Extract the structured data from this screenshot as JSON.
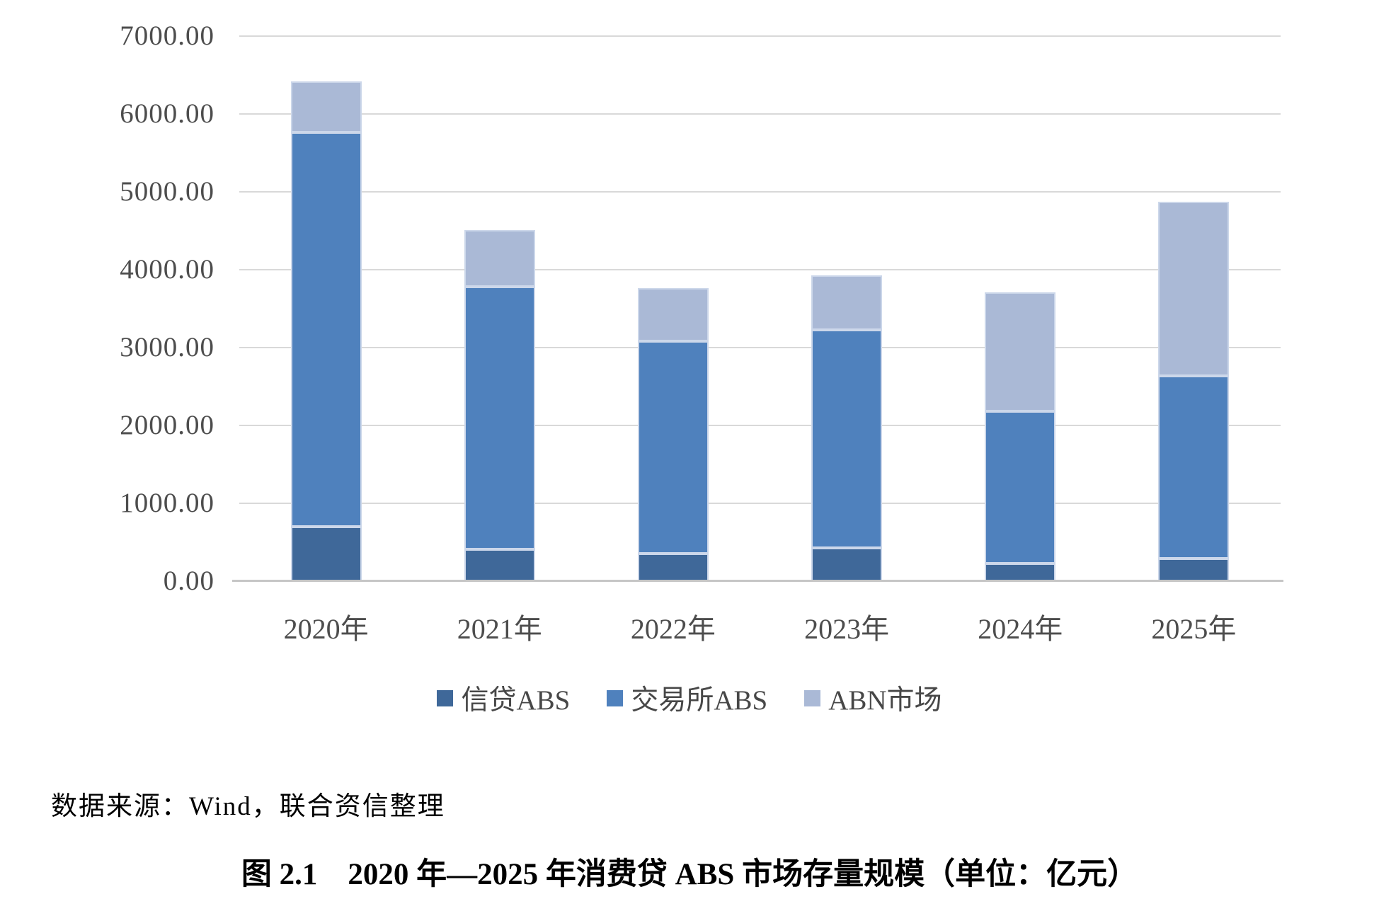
{
  "chart_data": {
    "type": "bar",
    "stacked": true,
    "categories": [
      "2020年",
      "2021年",
      "2022年",
      "2023年",
      "2024年",
      "2025年"
    ],
    "series": [
      {
        "name": "信贷ABS",
        "color": "#3f6899",
        "values": [
          700,
          405,
          355,
          430,
          230,
          295
        ]
      },
      {
        "name": "交易所ABS",
        "color": "#4f81bd",
        "values": [
          5060,
          3380,
          2730,
          2795,
          1955,
          2345
        ]
      },
      {
        "name": "ABN市场",
        "color": "#aab9d6",
        "values": [
          660,
          720,
          680,
          705,
          1525,
          2230
        ]
      }
    ],
    "totals": [
      6420,
      4505,
      3765,
      3930,
      3710,
      4870
    ],
    "ylim": [
      0,
      7000
    ],
    "ytick_step": 1000,
    "ytick_labels": [
      "0.00",
      "1000.00",
      "2000.00",
      "3000.00",
      "4000.00",
      "5000.00",
      "6000.00",
      "7000.00"
    ],
    "grid": "horizontal",
    "gridline_color": "#d9d9d9",
    "axisline_color": "#c6c6c6",
    "legend_position": "bottom",
    "xlabel": "",
    "ylabel": "",
    "title": ""
  },
  "source_note": "数据来源：Wind，联合资信整理",
  "caption": "图 2.1　2020 年—2025 年消费贷 ABS 市场存量规模（单位：亿元）"
}
